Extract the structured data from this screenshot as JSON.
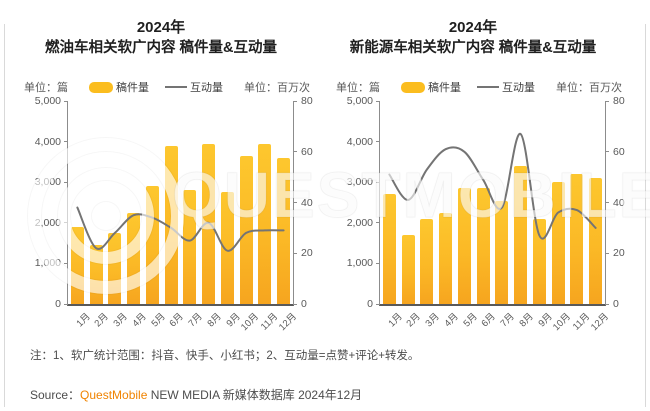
{
  "page": {
    "note": "注：1、软广统计范围：抖音、快手、小红书；2、互动量=点赞+评论+转发。",
    "source_prefix": "Source：",
    "source_brand": "QuestMobile",
    "source_suffix": " NEW MEDIA 新媒体数据库 2024年12月",
    "watermark_text": "QUESTMOBILE"
  },
  "colors": {
    "bar_top": "#FDC72E",
    "bar_bottom": "#F6A51F",
    "legend_bar": "#FBBD1F",
    "line": "#747474",
    "brand_orange": "#F08300",
    "axis_line": "#8c8c8c",
    "axis_text": "#595959",
    "title_text": "#1f1f1f"
  },
  "chart_data": [
    {
      "type": "bar+line",
      "title_line1": "2024年",
      "title_line2": "燃油车相关软广内容 稿件量&互动量",
      "unit_left": "单位：篇",
      "unit_right": "单位：百万次",
      "legend": {
        "bars_label": "稿件量",
        "line_label": "互动量"
      },
      "categories": [
        "1月",
        "2月",
        "3月",
        "4月",
        "5月",
        "6月",
        "7月",
        "8月",
        "9月",
        "10月",
        "11月",
        "12月"
      ],
      "series": [
        {
          "name": "稿件量",
          "type": "bar",
          "axis": "left",
          "values": [
            1900,
            1450,
            1750,
            2250,
            2900,
            3900,
            2800,
            3950,
            2750,
            3650,
            3950,
            3600
          ]
        },
        {
          "name": "互动量",
          "type": "line",
          "axis": "right",
          "values": [
            38,
            22,
            28,
            35,
            34,
            30,
            25,
            32,
            21,
            28,
            29,
            29
          ]
        }
      ],
      "left_axis": {
        "min": 0,
        "max": 5000,
        "ticks": [
          "0",
          "1,000",
          "2,000",
          "3,000",
          "4,000",
          "5,000"
        ]
      },
      "right_axis": {
        "min": 0,
        "max": 80,
        "ticks": [
          "0",
          "20",
          "40",
          "60",
          "80"
        ]
      },
      "grid": false,
      "legend_position": "top"
    },
    {
      "type": "bar+line",
      "title_line1": "2024年",
      "title_line2": "新能源车相关软广内容 稿件量&互动量",
      "unit_left": "单位：篇",
      "unit_right": "单位：百万次",
      "legend": {
        "bars_label": "稿件量",
        "line_label": "互动量"
      },
      "categories": [
        "1月",
        "2月",
        "3月",
        "4月",
        "5月",
        "6月",
        "7月",
        "8月",
        "9月",
        "10月",
        "11月",
        "12月"
      ],
      "series": [
        {
          "name": "稿件量",
          "type": "bar",
          "axis": "left",
          "values": [
            2700,
            1700,
            2100,
            2250,
            2850,
            2850,
            2550,
            3400,
            2100,
            3000,
            3200,
            3100
          ]
        },
        {
          "name": "互动量",
          "type": "line",
          "axis": "right",
          "values": [
            51,
            41,
            53,
            61,
            60,
            49,
            38,
            67,
            27,
            36,
            37,
            30
          ]
        }
      ],
      "left_axis": {
        "min": 0,
        "max": 5000,
        "ticks": [
          "0",
          "1,000",
          "2,000",
          "3,000",
          "4,000",
          "5,000"
        ]
      },
      "right_axis": {
        "min": 0,
        "max": 80,
        "ticks": [
          "0",
          "20",
          "40",
          "60",
          "80"
        ]
      },
      "grid": false,
      "legend_position": "top"
    }
  ]
}
